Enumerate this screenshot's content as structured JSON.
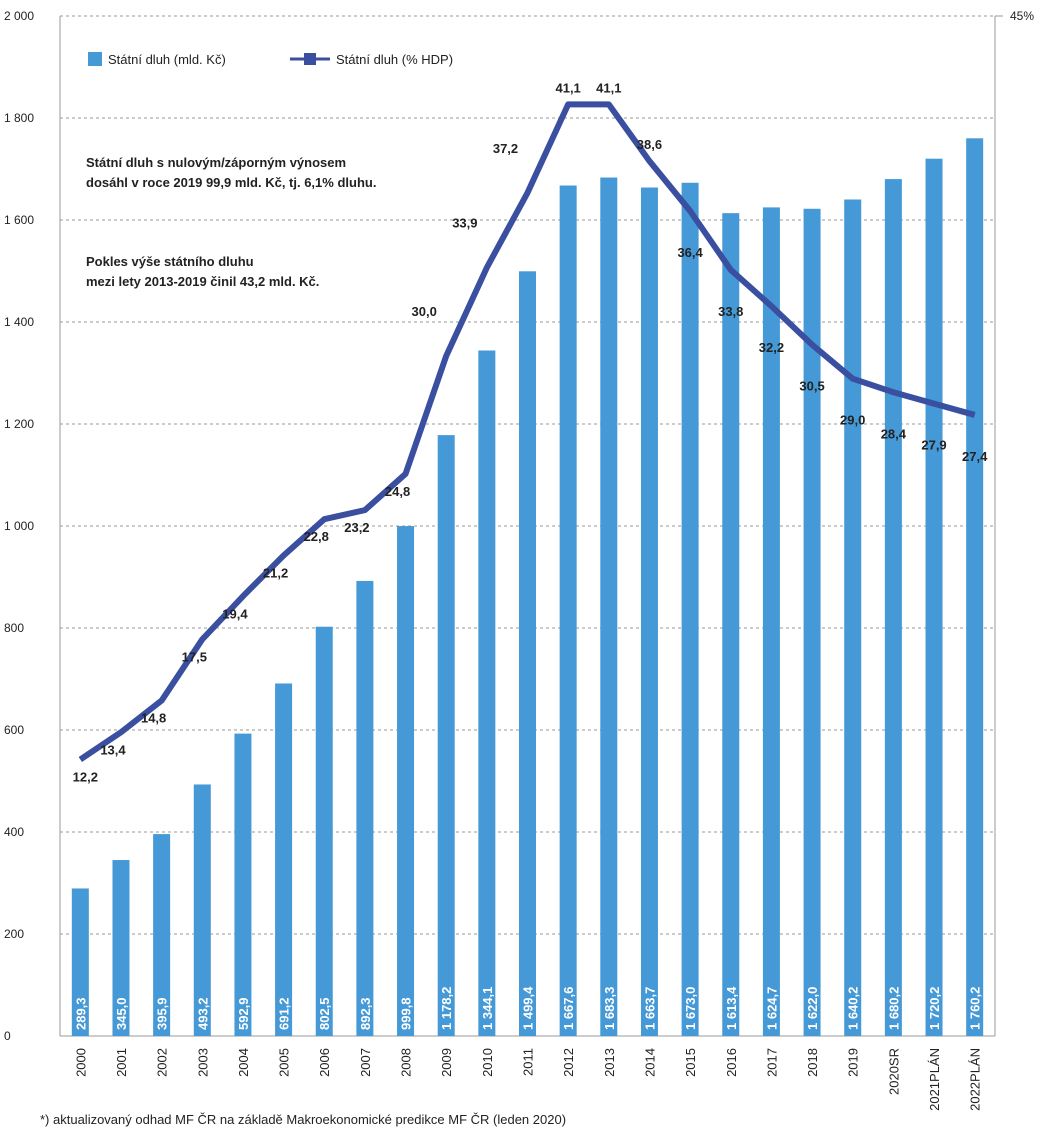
{
  "chart_data": {
    "type": "bar",
    "categories": [
      "2000",
      "2001",
      "2002",
      "2003",
      "2004",
      "2005",
      "2006",
      "2007",
      "2008",
      "2009",
      "2010",
      "2011",
      "2012",
      "2013",
      "2014",
      "2015",
      "2016",
      "2017",
      "2018",
      "2019",
      "2020SR",
      "2021PLÁN",
      "2022PLÁN"
    ],
    "series": [
      {
        "name": "Státní dluh (mld. Kč)",
        "type": "bar",
        "axis": "y",
        "color": "#4499d6",
        "values": [
          289.3,
          345.0,
          395.9,
          493.2,
          592.9,
          691.2,
          802.5,
          892.3,
          999.8,
          1178.2,
          1344.1,
          1499.4,
          1667.6,
          1683.3,
          1663.7,
          1673.0,
          1613.4,
          1624.7,
          1622.0,
          1640.2,
          1680.2,
          1720.2,
          1760.2
        ],
        "value_labels": [
          "289,3",
          "345,0",
          "395,9",
          "493,2",
          "592,9",
          "691,2",
          "802,5",
          "892,3",
          "999,8",
          "1 178,2",
          "1 344,1",
          "1 499,4",
          "1 667,6",
          "1 683,3",
          "1 663,7",
          "1 673,0",
          "1 613,4",
          "1 624,7",
          "1 622,0",
          "1 640,2",
          "1 680,2",
          "1 720,2",
          "1 760,2"
        ]
      },
      {
        "name": "Státní dluh (% HDP)",
        "type": "line",
        "axis": "y2",
        "color": "#3a4fa0",
        "values": [
          12.2,
          13.4,
          14.8,
          17.5,
          19.4,
          21.2,
          22.8,
          23.2,
          24.8,
          30.0,
          33.9,
          37.2,
          41.1,
          41.1,
          38.6,
          36.4,
          33.8,
          32.2,
          30.5,
          29.0,
          28.4,
          27.9,
          27.4
        ],
        "value_labels": [
          "12,2",
          "13,4",
          "14,8",
          "17,5",
          "19,4",
          "21,2",
          "22,8",
          "23,2",
          "24,8",
          "30,0",
          "33,9",
          "37,2",
          "41,1",
          "41,1",
          "38,6",
          "36,4",
          "33,8",
          "32,2",
          "30,5",
          "29,0",
          "28,4",
          "27,9",
          "27,4"
        ]
      }
    ],
    "ylim": [
      0,
      2000
    ],
    "yticks": [
      0,
      200,
      400,
      600,
      800,
      {
        "value": 1000,
        "label": "1 000"
      },
      {
        "value": 1200,
        "label": "1 200"
      },
      {
        "value": 1400,
        "label": "1 400"
      },
      {
        "value": 1600,
        "label": "1 600"
      },
      {
        "value": 1800,
        "label": "1 800"
      },
      {
        "value": 2000,
        "label": "2 000"
      }
    ],
    "y2lim": [
      0,
      45
    ],
    "y2ticks": [
      {
        "value": 45,
        "label": "45%"
      }
    ],
    "grid": true,
    "legend": "top-left",
    "annotations": [
      "Státní dluh s nulovým/záporným výnosem",
      "dosáhl v roce 2019 99,9 mld. Kč, tj. 6,1% dluhu.",
      "Pokles výše státního dluhu",
      "mezi lety 2013-2019 činil 43,2 mld. Kč."
    ],
    "note": "*) aktualizovaný odhad MF ČR na základě Makroekonomické predikce MF ČR (leden 2020)"
  }
}
